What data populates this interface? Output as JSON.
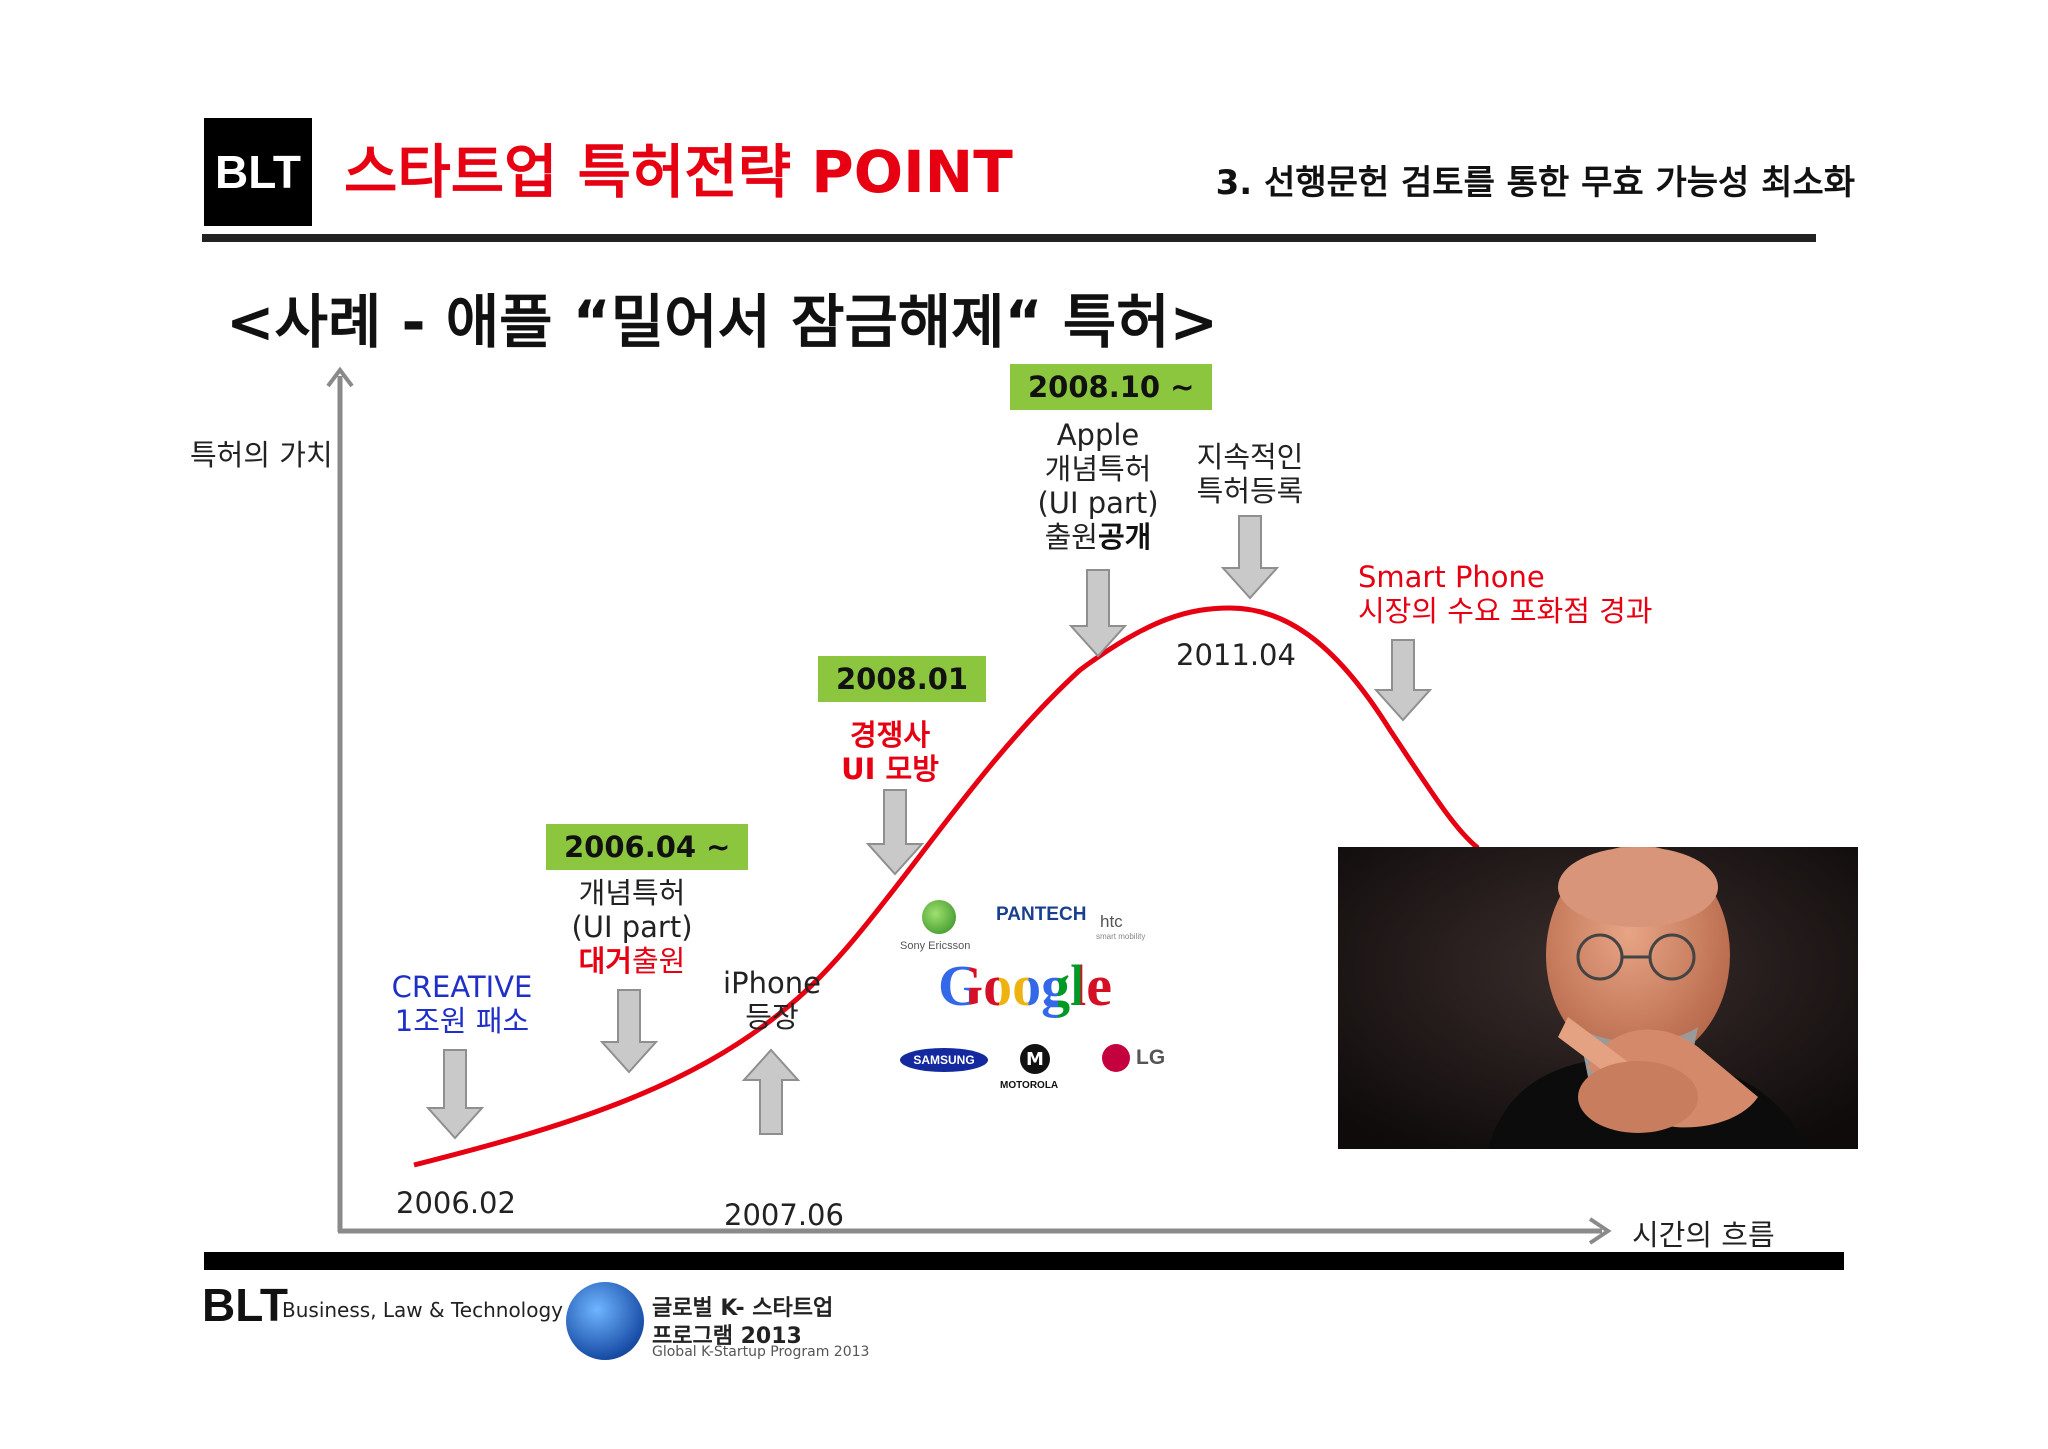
{
  "header": {
    "logo": "BLT",
    "title": "스타트업 특허전략 POINT",
    "section": "3. 선행문헌 검토를 통한 무효 가능성 최소화"
  },
  "case_title": "<사례 - 애플 “밀어서 잠금해제“ 특허>",
  "axes": {
    "y_label": "특허의 가치",
    "x_label": "시간의 흐름"
  },
  "dates": {
    "d2006_02": "2006.02",
    "d2007_06": "2007.06",
    "d2011_04": "2011.04"
  },
  "events": {
    "creative": {
      "line1": "CREATIVE",
      "line2": "1조원 패소",
      "color": "#1f2fc8"
    },
    "e2006_04": {
      "badge": "2006.04 ~",
      "line1": "개념특허",
      "line2": "(UI part)",
      "line3_red": "대거",
      "line3": "출원"
    },
    "iphone": {
      "line1": "iPhone",
      "line2": "등장"
    },
    "e2008_01": {
      "badge": "2008.01",
      "line1": "경쟁사",
      "line2": "UI 모방"
    },
    "e2008_10": {
      "badge": "2008.10 ~",
      "line1": "Apple",
      "line2": "개념특허",
      "line3": "(UI part)",
      "line4": "출원",
      "line4_bold": "공개"
    },
    "sustained": {
      "line1": "지속적인",
      "line2": "특허등록"
    },
    "smartphone": {
      "line1": "Smart Phone",
      "line2": "시장의 수요 포화점 경과"
    }
  },
  "competitors": {
    "sony": "Sony Ericsson",
    "pantech": "PANTECH",
    "htc": "htc",
    "htc_sub": "smart mobility",
    "google": "Google",
    "samsung": "SAMSUNG",
    "motorola": "MOTOROLA",
    "lg": "LG"
  },
  "footer": {
    "logo": "BLT",
    "subtitle": "Business, Law & Technology",
    "program_line1": "글로벌 K- 스타트업",
    "program_line2": "프로그램 2013",
    "program_line3": "Global K-Startup Program 2013"
  },
  "colors": {
    "accent_red": "#e60012",
    "badge_green": "#8cc63f",
    "arrow_gray": "#bdbdbd"
  }
}
